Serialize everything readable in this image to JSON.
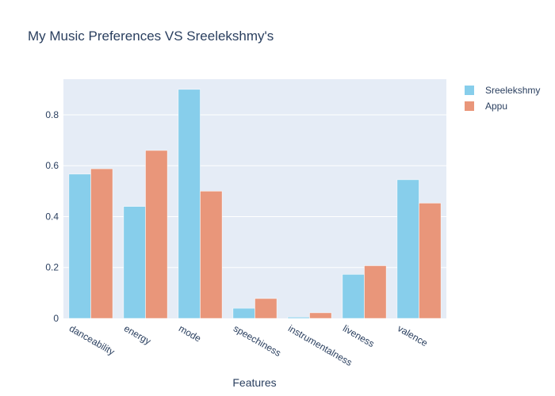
{
  "chart_data": {
    "type": "bar",
    "title": "My Music Preferences VS Sreelekshmy's",
    "xlabel": "Features",
    "ylabel": "",
    "categories": [
      "danceability",
      "energy",
      "mode",
      "speechiness",
      "instrumentalness",
      "liveness",
      "valence"
    ],
    "series": [
      {
        "name": "Sreelekshmy",
        "color": "#87ceeb",
        "values": [
          0.567,
          0.44,
          0.9,
          0.04,
          0.005,
          0.173,
          0.545
        ]
      },
      {
        "name": "Appu",
        "color": "#e9967a",
        "values": [
          0.588,
          0.66,
          0.5,
          0.078,
          0.022,
          0.207,
          0.453
        ]
      }
    ],
    "ylim": [
      0,
      0.94
    ],
    "yticks": [
      0,
      0.2,
      0.4,
      0.6,
      0.8
    ],
    "ytick_labels": [
      "0",
      "0.2",
      "0.4",
      "0.6",
      "0.8"
    ],
    "grid": true,
    "legend_position": "top-right",
    "plot_background": "#e5ecf6"
  }
}
